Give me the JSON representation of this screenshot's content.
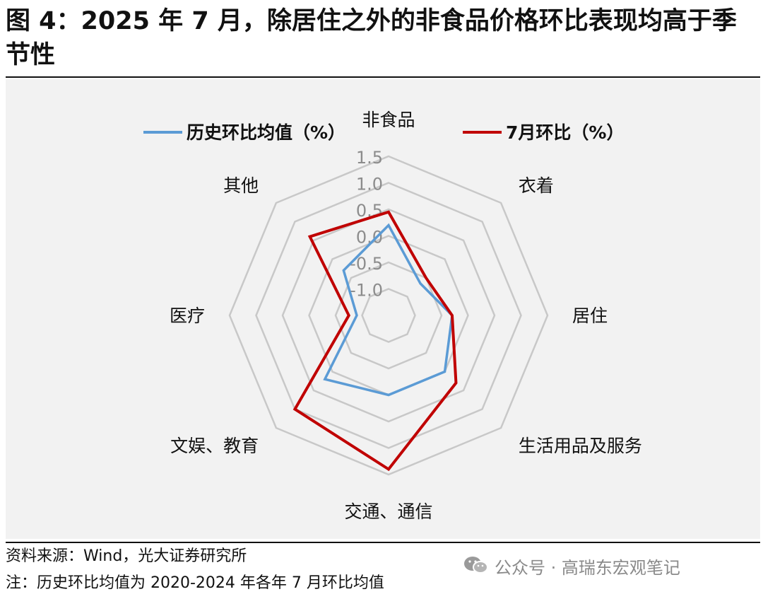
{
  "figure_title": "图 4：2025 年 7 月，除居住之外的非食品价格环比表现均高于季节性",
  "chart_data": {
    "type": "radar",
    "categories": [
      "非食品",
      "衣着",
      "居住",
      "生活用品及服务",
      "交通、通信",
      "文娱、教育",
      "医疗",
      "其他"
    ],
    "axis_ticks": [
      -1.0,
      -0.5,
      0.0,
      0.5,
      1.0,
      1.5
    ],
    "axis_tick_labels": [
      "-1.0",
      "-0.5",
      "0.0",
      "0.5",
      "1.0",
      "1.5"
    ],
    "range": [
      -1.5,
      1.5
    ],
    "grid": true,
    "legend_position": "top",
    "series": [
      {
        "name": "历史环比均值（%）",
        "color": "#5b9bd5",
        "values": [
          0.2,
          -0.65,
          -0.3,
          0.0,
          0.0,
          0.2,
          -0.9,
          -0.3
        ]
      },
      {
        "name": "7月环比（%）",
        "color": "#c00000",
        "values": [
          0.45,
          -0.5,
          -0.3,
          0.3,
          1.4,
          1.0,
          -0.75,
          0.6
        ]
      }
    ]
  },
  "footer": {
    "source": "资料来源：Wind，光大证券研究所",
    "note": "注：历史环比均值为 2020-2024 年各年 7 月环比均值"
  },
  "watermark": "公众号 · 高瑞东宏观笔记"
}
